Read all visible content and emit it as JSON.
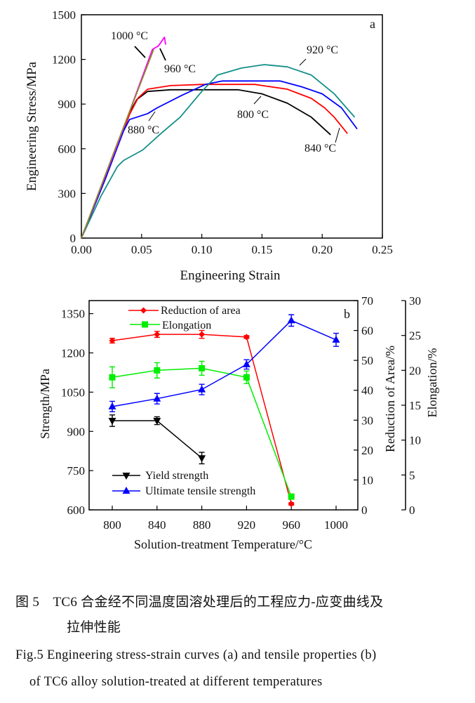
{
  "chart_data": [
    {
      "type": "line",
      "panel_label": "a",
      "xlabel": "Engineering Strain",
      "ylabel": "Engineering Stress/MPa",
      "xlim": [
        0,
        0.25
      ],
      "ylim": [
        0,
        1500
      ],
      "xticks": [
        "0.00",
        "0.05",
        "0.10",
        "0.15",
        "0.20",
        "0.25"
      ],
      "yticks": [
        "0",
        "300",
        "600",
        "900",
        "1200",
        "1500"
      ],
      "grid": false,
      "series": [
        {
          "name": "800 °C",
          "color": "#000000",
          "points": [
            [
              0,
              0
            ],
            [
              0.02,
              400
            ],
            [
              0.04,
              840
            ],
            [
              0.046,
              930
            ],
            [
              0.055,
              985
            ],
            [
              0.074,
              996
            ],
            [
              0.13,
              996
            ],
            [
              0.15,
              969
            ],
            [
              0.171,
              906
            ],
            [
              0.191,
              812
            ],
            [
              0.207,
              694
            ]
          ]
        },
        {
          "name": "840 °C",
          "color": "#ff0000",
          "points": [
            [
              0,
              0
            ],
            [
              0.02,
              400
            ],
            [
              0.04,
              830
            ],
            [
              0.047,
              940
            ],
            [
              0.055,
              1000
            ],
            [
              0.074,
              1024
            ],
            [
              0.101,
              1032
            ],
            [
              0.144,
              1032
            ],
            [
              0.171,
              1000
            ],
            [
              0.191,
              938
            ],
            [
              0.202,
              875
            ],
            [
              0.21,
              812
            ],
            [
              0.221,
              702
            ]
          ]
        },
        {
          "name": "880 °C",
          "color": "#0000ff",
          "points": [
            [
              0,
              0
            ],
            [
              0.02,
              400
            ],
            [
              0.035,
              720
            ],
            [
              0.04,
              796
            ],
            [
              0.055,
              836
            ],
            [
              0.063,
              875
            ],
            [
              0.084,
              961
            ],
            [
              0.103,
              1032
            ],
            [
              0.117,
              1055
            ],
            [
              0.165,
              1055
            ],
            [
              0.183,
              1016
            ],
            [
              0.2,
              969
            ],
            [
              0.216,
              875
            ],
            [
              0.229,
              733
            ]
          ]
        },
        {
          "name": "920 °C",
          "color": "#138f8a",
          "points": [
            [
              0,
              0
            ],
            [
              0.016,
              278
            ],
            [
              0.03,
              482
            ],
            [
              0.035,
              521
            ],
            [
              0.051,
              592
            ],
            [
              0.066,
              702
            ],
            [
              0.082,
              812
            ],
            [
              0.1,
              985
            ],
            [
              0.113,
              1095
            ],
            [
              0.133,
              1142
            ],
            [
              0.152,
              1165
            ],
            [
              0.171,
              1150
            ],
            [
              0.191,
              1095
            ],
            [
              0.21,
              969
            ],
            [
              0.227,
              812
            ]
          ]
        },
        {
          "name": "960 °C",
          "color": "#ff00ff",
          "points": [
            [
              0,
              0
            ],
            [
              0.03,
              630
            ],
            [
              0.059,
              1267
            ],
            [
              0.064,
              1291
            ],
            [
              0.069,
              1349
            ],
            [
              0.07,
              1299
            ]
          ]
        },
        {
          "name": "1000 °C",
          "color": "#8a8a2a",
          "points": [
            [
              0,
              0
            ],
            [
              0.03,
              640
            ],
            [
              0.06,
              1267
            ]
          ]
        }
      ]
    },
    {
      "type": "line",
      "panel_label": "b",
      "xlabel": "Solution-treatment Temperature/°C",
      "ylabel": "Strength/MPa",
      "ylabel_right": "Reduction of Area/%",
      "ylabel_right2": "Elongation/%",
      "categories": [
        800,
        840,
        880,
        920,
        960,
        1000
      ],
      "xticks": [
        "800",
        "840",
        "880",
        "920",
        "960",
        "1000"
      ],
      "ylim": [
        600,
        1400
      ],
      "yticks": [
        "600",
        "750",
        "900",
        "1050",
        "1200",
        "1350"
      ],
      "ylim_right": [
        0,
        70
      ],
      "yticks_right": [
        "0",
        "10",
        "20",
        "30",
        "40",
        "50",
        "60",
        "70"
      ],
      "ylim_right2": [
        0,
        30
      ],
      "yticks_right2": [
        "0",
        "5",
        "10",
        "15",
        "20",
        "25",
        "30"
      ],
      "grid": false,
      "series": [
        {
          "name": "Reduction of area",
          "axis": "right",
          "color": "#ff0000",
          "marker": "diamond",
          "x": [
            800,
            840,
            880,
            920,
            960
          ],
          "values": [
            56.6,
            58.7,
            58.7,
            57.8,
            2.0
          ],
          "error": [
            0.8,
            1.0,
            1.3,
            0.5,
            0.4
          ]
        },
        {
          "name": "Elongation",
          "axis": "right2",
          "color": "#00ee00",
          "marker": "square",
          "x": [
            800,
            840,
            880,
            920,
            960
          ],
          "values": [
            19.0,
            20.0,
            20.3,
            19.0,
            1.9
          ],
          "error": [
            1.5,
            1.1,
            1.0,
            0.9,
            0.3
          ]
        },
        {
          "name": "Yield strength",
          "axis": "left",
          "color": "#000000",
          "marker": "triangle-down",
          "x": [
            800,
            840,
            880
          ],
          "values": [
            941,
            941,
            798
          ],
          "error": [
            22,
            15,
            22
          ]
        },
        {
          "name": "Ultimate tensile strength",
          "axis": "left",
          "color": "#0000ff",
          "marker": "triangle-up",
          "x": [
            800,
            840,
            880,
            920,
            960,
            1000
          ],
          "values": [
            995,
            1025,
            1060,
            1156,
            1324,
            1250
          ],
          "error": [
            20,
            20,
            20,
            18,
            22,
            25
          ]
        }
      ],
      "legend": [
        "top-left",
        "bottom-left"
      ]
    }
  ],
  "captions": {
    "zh_line1": "图 5　TC6 合金经不同温度固溶处理后的工程应力-应变曲线及",
    "zh_line2": "拉伸性能",
    "en_line1": "Fig.5   Engineering stress-strain curves (a) and tensile properties (b)",
    "en_line2": "of TC6 alloy solution-treated at different temperatures"
  }
}
